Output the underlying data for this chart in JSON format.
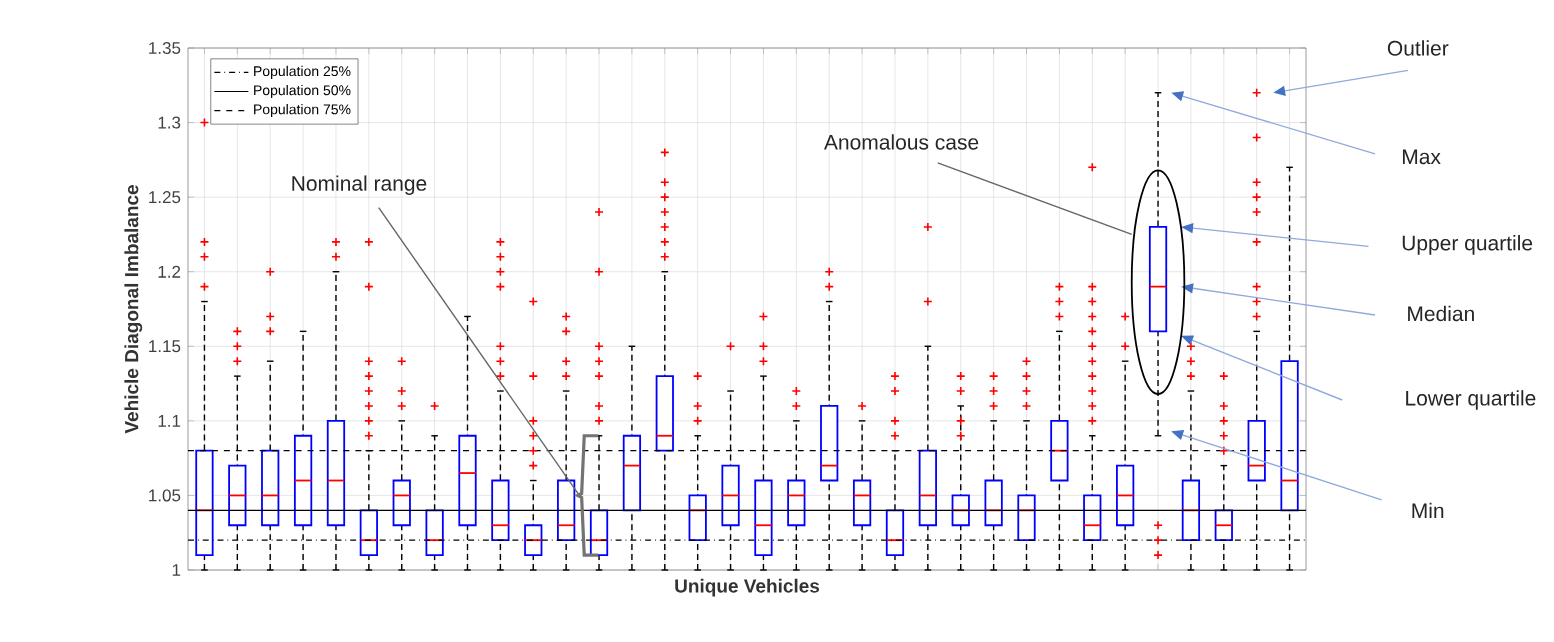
{
  "chart_data": {
    "type": "box",
    "xlabel": "Unique Vehicles",
    "ylabel": "Vehicle Diagonal Imbalance",
    "categories": [
      null,
      null,
      null,
      null,
      null,
      null,
      null,
      null,
      null,
      null,
      null,
      null,
      null,
      null,
      null,
      null,
      null,
      null,
      null,
      null,
      null,
      null,
      null,
      null,
      null,
      null,
      null,
      null,
      null,
      null,
      null,
      null,
      null,
      null
    ],
    "color": "#0000ff",
    "marker": "cross",
    "grid": true,
    "legend": "top left",
    "tick_labels": "y",
    "ylim": [
      1,
      1.35
    ],
    "yticks": [
      1,
      1.05,
      1.1,
      1.15,
      1.2,
      1.25,
      1.3,
      1.35
    ],
    "boxes": [
      {
        "low": 1.0,
        "q1": 1.01,
        "median": 1.04,
        "q3": 1.08,
        "high": 1.18,
        "outliers": [
          1.3,
          1.22,
          1.21,
          1.19
        ]
      },
      {
        "low": 1.0,
        "q1": 1.03,
        "median": 1.05,
        "q3": 1.07,
        "high": 1.13,
        "outliers": [
          1.16,
          1.15,
          1.14
        ]
      },
      {
        "low": 1.0,
        "q1": 1.03,
        "median": 1.05,
        "q3": 1.08,
        "high": 1.14,
        "outliers": [
          1.2,
          1.17,
          1.16
        ]
      },
      {
        "low": 1.0,
        "q1": 1.03,
        "median": 1.06,
        "q3": 1.09,
        "high": 1.16
      },
      {
        "low": 1.0,
        "q1": 1.03,
        "median": 1.06,
        "q3": 1.1,
        "high": 1.2,
        "outliers": [
          1.22,
          1.21
        ]
      },
      {
        "low": 1.0,
        "q1": 1.01,
        "median": 1.02,
        "q3": 1.04,
        "high": 1.08,
        "outliers": [
          1.22,
          1.19,
          1.14,
          1.13,
          1.12,
          1.11,
          1.1,
          1.09
        ]
      },
      {
        "low": 1.0,
        "q1": 1.03,
        "median": 1.05,
        "q3": 1.06,
        "high": 1.1,
        "outliers": [
          1.14,
          1.12,
          1.11
        ]
      },
      {
        "low": 1.0,
        "q1": 1.01,
        "median": 1.02,
        "q3": 1.04,
        "high": 1.09,
        "outliers": [
          1.11
        ]
      },
      {
        "low": 1.0,
        "q1": 1.03,
        "median": 1.065,
        "q3": 1.09,
        "high": 1.17
      },
      {
        "low": 1.0,
        "q1": 1.02,
        "median": 1.03,
        "q3": 1.06,
        "high": 1.12,
        "outliers": [
          1.22,
          1.21,
          1.2,
          1.19,
          1.15,
          1.14,
          1.13
        ]
      },
      {
        "low": 1.0,
        "q1": 1.01,
        "median": 1.02,
        "q3": 1.03,
        "high": 1.06,
        "outliers": [
          1.18,
          1.13,
          1.1,
          1.09,
          1.08,
          1.07
        ]
      },
      {
        "low": 1.0,
        "q1": 1.02,
        "median": 1.03,
        "q3": 1.06,
        "high": 1.12,
        "outliers": [
          1.17,
          1.16,
          1.14,
          1.13
        ]
      },
      {
        "low": 1.0,
        "q1": 1.01,
        "median": 1.02,
        "q3": 1.04,
        "high": 1.09,
        "outliers": [
          1.24,
          1.2,
          1.15,
          1.14,
          1.13,
          1.11,
          1.1
        ]
      },
      {
        "low": 1.0,
        "q1": 1.04,
        "median": 1.07,
        "q3": 1.09,
        "high": 1.15
      },
      {
        "low": 1.0,
        "q1": 1.08,
        "median": 1.09,
        "q3": 1.13,
        "high": 1.2,
        "outliers": [
          1.28,
          1.26,
          1.25,
          1.24,
          1.23,
          1.22,
          1.21
        ]
      },
      {
        "low": 1.0,
        "q1": 1.02,
        "median": 1.04,
        "q3": 1.05,
        "high": 1.09,
        "outliers": [
          1.13,
          1.11,
          1.1
        ]
      },
      {
        "low": 1.0,
        "q1": 1.03,
        "median": 1.05,
        "q3": 1.07,
        "high": 1.12,
        "outliers": [
          1.15
        ]
      },
      {
        "low": 1.0,
        "q1": 1.01,
        "median": 1.03,
        "q3": 1.06,
        "high": 1.13,
        "outliers": [
          1.17,
          1.15,
          1.14
        ]
      },
      {
        "low": 1.0,
        "q1": 1.03,
        "median": 1.05,
        "q3": 1.06,
        "high": 1.1,
        "outliers": [
          1.12,
          1.11
        ]
      },
      {
        "low": 1.0,
        "q1": 1.06,
        "median": 1.07,
        "q3": 1.11,
        "high": 1.18,
        "outliers": [
          1.2,
          1.19
        ]
      },
      {
        "low": 1.0,
        "q1": 1.03,
        "median": 1.05,
        "q3": 1.06,
        "high": 1.1,
        "outliers": [
          1.11
        ]
      },
      {
        "low": 1.0,
        "q1": 1.01,
        "median": 1.02,
        "q3": 1.04,
        "high": 1.08,
        "outliers": [
          1.13,
          1.12,
          1.1,
          1.09
        ]
      },
      {
        "low": 1.0,
        "q1": 1.03,
        "median": 1.05,
        "q3": 1.08,
        "high": 1.15,
        "outliers": [
          1.23,
          1.18
        ]
      },
      {
        "low": 1.0,
        "q1": 1.03,
        "median": 1.04,
        "q3": 1.05,
        "high": 1.11,
        "outliers": [
          1.13,
          1.12,
          1.1,
          1.09
        ]
      },
      {
        "low": 1.0,
        "q1": 1.03,
        "median": 1.04,
        "q3": 1.06,
        "high": 1.1,
        "outliers": [
          1.13,
          1.12,
          1.11
        ]
      },
      {
        "low": 1.0,
        "q1": 1.02,
        "median": 1.04,
        "q3": 1.05,
        "high": 1.1,
        "outliers": [
          1.14,
          1.13,
          1.12,
          1.11
        ]
      },
      {
        "low": 1.0,
        "q1": 1.06,
        "median": 1.08,
        "q3": 1.1,
        "high": 1.16,
        "outliers": [
          1.19,
          1.18,
          1.17
        ]
      },
      {
        "low": 1.0,
        "q1": 1.02,
        "median": 1.03,
        "q3": 1.05,
        "high": 1.09,
        "outliers": [
          1.27,
          1.19,
          1.18,
          1.17,
          1.16,
          1.15,
          1.14,
          1.13,
          1.12,
          1.11,
          1.1
        ]
      },
      {
        "low": 1.0,
        "q1": 1.03,
        "median": 1.05,
        "q3": 1.07,
        "high": 1.14,
        "outliers": [
          1.17,
          1.15
        ]
      },
      {
        "low": 1.09,
        "q1": 1.16,
        "median": 1.19,
        "q3": 1.23,
        "high": 1.32,
        "outliers": [
          1.03,
          1.02,
          1.01
        ]
      },
      {
        "low": 1.0,
        "q1": 1.02,
        "median": 1.04,
        "q3": 1.06,
        "high": 1.12,
        "outliers": [
          1.15,
          1.14,
          1.13
        ]
      },
      {
        "low": 1.0,
        "q1": 1.02,
        "median": 1.03,
        "q3": 1.04,
        "high": 1.07,
        "outliers": [
          1.13,
          1.11,
          1.1,
          1.09,
          1.08
        ]
      },
      {
        "low": 1.0,
        "q1": 1.06,
        "median": 1.07,
        "q3": 1.1,
        "high": 1.16,
        "outliers": [
          1.32,
          1.29,
          1.26,
          1.25,
          1.24,
          1.22,
          1.19,
          1.18,
          1.17
        ]
      },
      {
        "low": 1.0,
        "q1": 1.04,
        "median": 1.06,
        "q3": 1.14,
        "high": 1.27
      }
    ],
    "ref_lines": [
      {
        "axis": "y",
        "value": 1.02,
        "label": "Population 25%",
        "line_style": "dashdot",
        "color": "#000000"
      },
      {
        "axis": "y",
        "value": 1.04,
        "label": "Population 50%",
        "line_style": "solid",
        "color": "#000000"
      },
      {
        "axis": "y",
        "value": 1.08,
        "label": "Population 75%",
        "line_style": "dashed",
        "color": "#000000"
      }
    ],
    "annotations": [
      "Nominal range",
      "Anomalous case",
      "Outlier",
      "Max",
      "Upper quartile",
      "Median",
      "Lower quartile",
      "Min"
    ]
  }
}
